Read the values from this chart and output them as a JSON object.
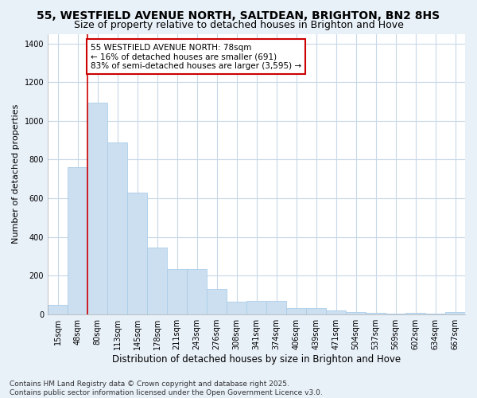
{
  "title": "55, WESTFIELD AVENUE NORTH, SALTDEAN, BRIGHTON, BN2 8HS",
  "subtitle": "Size of property relative to detached houses in Brighton and Hove",
  "xlabel": "Distribution of detached houses by size in Brighton and Hove",
  "ylabel": "Number of detached properties",
  "categories": [
    "15sqm",
    "48sqm",
    "80sqm",
    "113sqm",
    "145sqm",
    "178sqm",
    "211sqm",
    "243sqm",
    "276sqm",
    "308sqm",
    "341sqm",
    "374sqm",
    "406sqm",
    "439sqm",
    "471sqm",
    "504sqm",
    "537sqm",
    "569sqm",
    "602sqm",
    "634sqm",
    "667sqm"
  ],
  "values": [
    50,
    760,
    1095,
    890,
    630,
    345,
    235,
    235,
    130,
    65,
    70,
    70,
    30,
    30,
    20,
    10,
    8,
    3,
    5,
    3,
    10
  ],
  "bar_color": "#ccdff0",
  "bar_edge_color": "#aacde8",
  "vline_x_index": 2,
  "vline_color": "#cc0000",
  "annotation_text": "55 WESTFIELD AVENUE NORTH: 78sqm\n← 16% of detached houses are smaller (691)\n83% of semi-detached houses are larger (3,595) →",
  "annotation_box_color": "#ffffff",
  "annotation_box_edge": "#cc0000",
  "ylim": [
    0,
    1450
  ],
  "yticks": [
    0,
    200,
    400,
    600,
    800,
    1000,
    1200,
    1400
  ],
  "plot_bg_color": "#ffffff",
  "fig_bg_color": "#e8f0f8",
  "grid_color": "#c8d8e8",
  "footer": "Contains HM Land Registry data © Crown copyright and database right 2025.\nContains public sector information licensed under the Open Government Licence v3.0.",
  "title_fontsize": 10,
  "subtitle_fontsize": 9,
  "xlabel_fontsize": 8.5,
  "ylabel_fontsize": 8,
  "tick_fontsize": 7,
  "annotation_fontsize": 7.5,
  "footer_fontsize": 6.5
}
